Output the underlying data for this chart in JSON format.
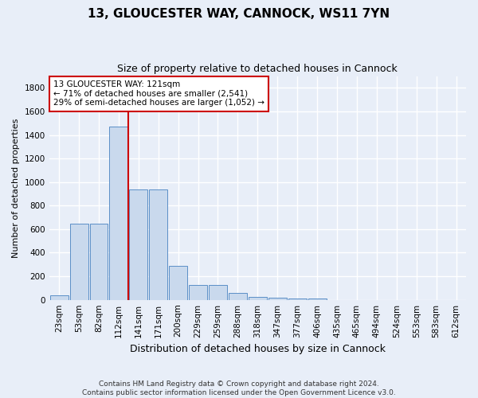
{
  "title1": "13, GLOUCESTER WAY, CANNOCK, WS11 7YN",
  "title2": "Size of property relative to detached houses in Cannock",
  "xlabel": "Distribution of detached houses by size in Cannock",
  "ylabel": "Number of detached properties",
  "bins": [
    "23sqm",
    "53sqm",
    "82sqm",
    "112sqm",
    "141sqm",
    "171sqm",
    "200sqm",
    "229sqm",
    "259sqm",
    "288sqm",
    "318sqm",
    "347sqm",
    "377sqm",
    "406sqm",
    "435sqm",
    "465sqm",
    "494sqm",
    "524sqm",
    "553sqm",
    "583sqm",
    "612sqm"
  ],
  "values": [
    38,
    650,
    650,
    1470,
    940,
    940,
    290,
    125,
    125,
    60,
    25,
    20,
    10,
    10,
    0,
    0,
    0,
    0,
    0,
    0,
    0
  ],
  "bar_color": "#c9d9ed",
  "bar_edge_color": "#5b8fc7",
  "vline_color": "#cc0000",
  "annotation_text": "13 GLOUCESTER WAY: 121sqm\n← 71% of detached houses are smaller (2,541)\n29% of semi-detached houses are larger (1,052) →",
  "annotation_box_color": "#ffffff",
  "annotation_box_edge_color": "#cc0000",
  "ylim": [
    0,
    1900
  ],
  "yticks": [
    0,
    200,
    400,
    600,
    800,
    1000,
    1200,
    1400,
    1600,
    1800
  ],
  "footer": "Contains HM Land Registry data © Crown copyright and database right 2024.\nContains public sector information licensed under the Open Government Licence v3.0.",
  "bg_color": "#e8eef8",
  "plot_bg_color": "#e8eef8",
  "grid_color": "#ffffff",
  "title1_fontsize": 11,
  "title2_fontsize": 9,
  "ylabel_fontsize": 8,
  "xlabel_fontsize": 9,
  "tick_fontsize": 7.5,
  "footer_fontsize": 6.5,
  "bar_width": 0.92
}
